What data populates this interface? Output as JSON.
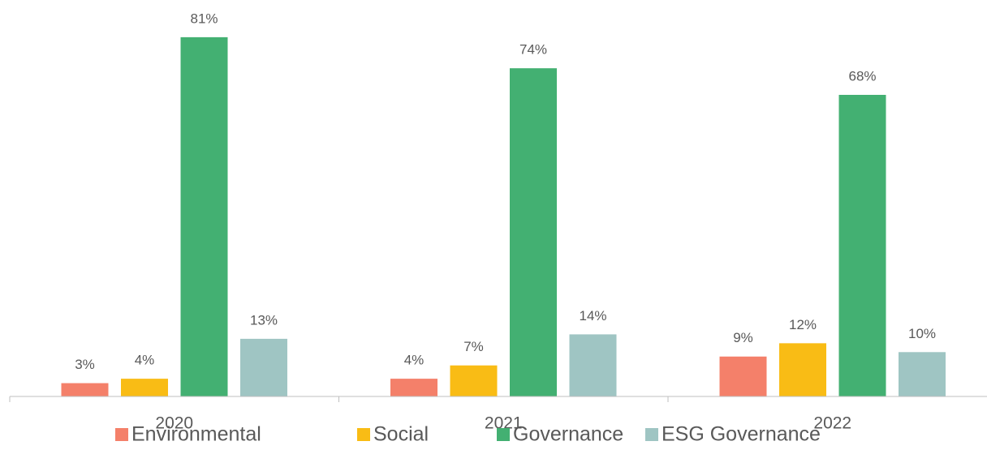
{
  "chart_data": {
    "type": "bar",
    "categories": [
      "2020",
      "2021",
      "2022"
    ],
    "series": [
      {
        "name": "Environmental",
        "color": "#f4806a",
        "values": [
          3,
          4,
          9
        ],
        "value_labels": [
          "3%",
          "4%",
          "9%"
        ]
      },
      {
        "name": "Social",
        "color": "#f9bc15",
        "values": [
          4,
          7,
          12
        ],
        "value_labels": [
          "4%",
          "7%",
          "12%"
        ]
      },
      {
        "name": "Governance",
        "color": "#43b072",
        "values": [
          81,
          74,
          68
        ],
        "value_labels": [
          "81%",
          "74%",
          "68%"
        ]
      },
      {
        "name": "ESG Governance",
        "color": "#9fc5c3",
        "values": [
          13,
          14,
          10
        ],
        "value_labels": [
          "13%",
          "14%",
          "10%"
        ]
      }
    ],
    "ylim": [
      0,
      85
    ],
    "legend": "bottom"
  }
}
